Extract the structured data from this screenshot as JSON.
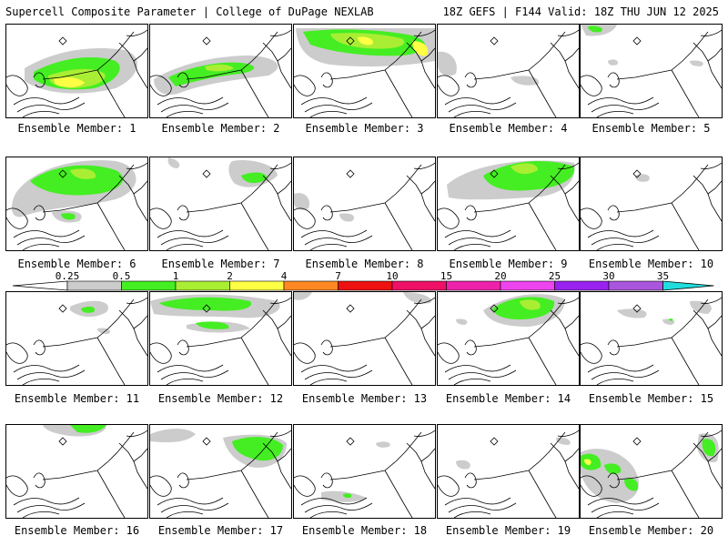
{
  "header": {
    "left_title": "Supercell Composite Parameter | College of DuPage NEXLAB",
    "right_title": "18Z GEFS | F144 Valid: 18Z THU JUN 12 2025"
  },
  "caption_prefix": "Ensemble Member:",
  "members": [
    {
      "label": "Ensemble Member: 1"
    },
    {
      "label": "Ensemble Member: 2"
    },
    {
      "label": "Ensemble Member: 3"
    },
    {
      "label": "Ensemble Member: 4"
    },
    {
      "label": "Ensemble Member: 5"
    },
    {
      "label": "Ensemble Member: 6"
    },
    {
      "label": "Ensemble Member: 7"
    },
    {
      "label": "Ensemble Member: 8"
    },
    {
      "label": "Ensemble Member: 9"
    },
    {
      "label": "Ensemble Member: 10"
    },
    {
      "label": "Ensemble Member: 11"
    },
    {
      "label": "Ensemble Member: 12"
    },
    {
      "label": "Ensemble Member: 13"
    },
    {
      "label": "Ensemble Member: 14"
    },
    {
      "label": "Ensemble Member: 15"
    },
    {
      "label": "Ensemble Member: 16"
    },
    {
      "label": "Ensemble Member: 17"
    },
    {
      "label": "Ensemble Member: 18"
    },
    {
      "label": "Ensemble Member: 19"
    },
    {
      "label": "Ensemble Member: 20"
    }
  ],
  "colorbar": {
    "ticks": [
      "0.25",
      "0.5",
      "1",
      "2",
      "4",
      "7",
      "10",
      "15",
      "20",
      "25",
      "30",
      "35"
    ],
    "colors": [
      "#cccccc",
      "#44ee22",
      "#aaee33",
      "#ffff44",
      "#ff8822",
      "#ee1111",
      "#ee1166",
      "#ee22aa",
      "#ee44ee",
      "#9922ee",
      "#aa55dd",
      "#22dddd"
    ]
  }
}
